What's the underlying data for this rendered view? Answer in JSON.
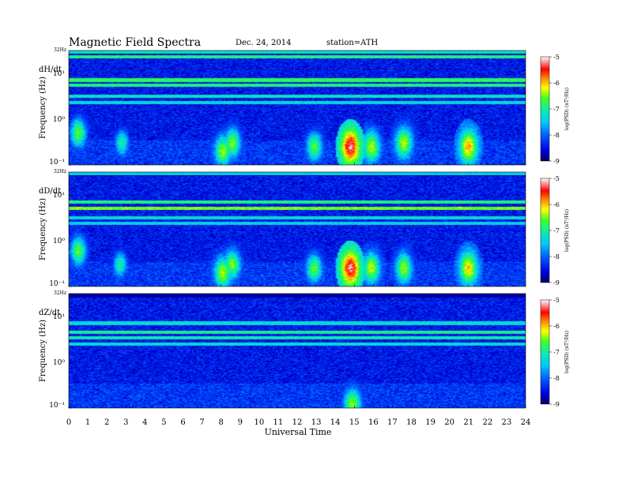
{
  "header": {
    "title": "Magnetic  Field  Spectra",
    "date": "Dec. 24, 2014",
    "station": "station=ATH"
  },
  "chart_data": [
    {
      "type": "heatmap",
      "panel": "dH/dt",
      "ylabel": "Frequency  (Hz)",
      "top_label": "32Hz",
      "yticks": [
        "10¹",
        "10⁰",
        "10⁻¹"
      ],
      "ylim_hz": [
        0.1,
        32
      ],
      "ylog": true,
      "xlim": [
        0,
        24
      ],
      "colorbar": {
        "label": "log(PSD) (nT²/Hz)",
        "ticks": [
          "-5",
          "-6",
          "-7",
          "-8",
          "-9"
        ],
        "range": [
          -9,
          -5
        ]
      },
      "bands": [
        {
          "hz": 30,
          "level": -7.2
        },
        {
          "hz": 23,
          "level": -6.9
        },
        {
          "hz": 7.2,
          "level": -6.8
        },
        {
          "hz": 5.5,
          "level": -6.9
        },
        {
          "hz": 3.2,
          "level": -7.2
        },
        {
          "hz": 2.3,
          "level": -7.3
        }
      ],
      "events": [
        {
          "t": 0.5,
          "hz": 0.5,
          "level": -6.6
        },
        {
          "t": 2.8,
          "hz": 0.3,
          "level": -7.0
        },
        {
          "t": 8.1,
          "hz": 0.2,
          "level": -6.4
        },
        {
          "t": 8.6,
          "hz": 0.3,
          "level": -6.5
        },
        {
          "t": 12.9,
          "hz": 0.25,
          "level": -6.6
        },
        {
          "t": 14.8,
          "hz": 0.25,
          "level": -5.2
        },
        {
          "t": 15.9,
          "hz": 0.25,
          "level": -6.3
        },
        {
          "t": 17.6,
          "hz": 0.3,
          "level": -6.3
        },
        {
          "t": 21.0,
          "hz": 0.25,
          "level": -5.9
        }
      ]
    },
    {
      "type": "heatmap",
      "panel": "dD/dt",
      "ylabel": "Frequency  (Hz)",
      "top_label": "32Hz",
      "yticks": [
        "10¹",
        "10⁰",
        "10⁻¹"
      ],
      "ylim_hz": [
        0.1,
        32
      ],
      "ylog": true,
      "xlim": [
        0,
        24
      ],
      "colorbar": {
        "label": "log(PSD) (nT²/Hz)",
        "ticks": [
          "-5",
          "-6",
          "-7",
          "-8",
          "-9"
        ],
        "range": [
          -9,
          -5
        ]
      },
      "bands": [
        {
          "hz": 30,
          "level": -7.4
        },
        {
          "hz": 7.0,
          "level": -6.9
        },
        {
          "hz": 5.2,
          "level": -6.5
        },
        {
          "hz": 3.2,
          "level": -7.3
        },
        {
          "hz": 2.4,
          "level": -7.4
        }
      ],
      "events": [
        {
          "t": 0.5,
          "hz": 0.6,
          "level": -6.6
        },
        {
          "t": 2.7,
          "hz": 0.3,
          "level": -7.0
        },
        {
          "t": 8.1,
          "hz": 0.2,
          "level": -6.3
        },
        {
          "t": 8.6,
          "hz": 0.3,
          "level": -6.5
        },
        {
          "t": 12.9,
          "hz": 0.25,
          "level": -6.6
        },
        {
          "t": 14.8,
          "hz": 0.25,
          "level": -5.2
        },
        {
          "t": 15.9,
          "hz": 0.25,
          "level": -6.3
        },
        {
          "t": 17.6,
          "hz": 0.25,
          "level": -6.4
        },
        {
          "t": 21.0,
          "hz": 0.25,
          "level": -6.0
        }
      ]
    },
    {
      "type": "heatmap",
      "panel": "dZ/dt",
      "ylabel": "Frequency  (Hz)",
      "top_label": "32Hz",
      "yticks": [
        "10¹",
        "10⁰",
        "10⁻¹"
      ],
      "ylim_hz": [
        0.1,
        32
      ],
      "ylog": true,
      "xlim": [
        0,
        24
      ],
      "colorbar": {
        "label": "log(PSD) (nT²/Hz)",
        "ticks": [
          "-5",
          "-6",
          "-7",
          "-8",
          "-9"
        ],
        "range": [
          -9,
          -5
        ]
      },
      "bands": [
        {
          "hz": 7.2,
          "level": -7.3
        },
        {
          "hz": 4.5,
          "level": -7.0
        },
        {
          "hz": 3.5,
          "level": -7.1
        },
        {
          "hz": 2.5,
          "level": -7.3
        }
      ],
      "events": [
        {
          "t": 14.9,
          "hz": 0.12,
          "level": -6.4
        }
      ]
    }
  ],
  "xaxis": {
    "label": "Universal  Time",
    "ticks": [
      "0",
      "1",
      "2",
      "3",
      "4",
      "5",
      "6",
      "7",
      "8",
      "9",
      "10",
      "11",
      "12",
      "13",
      "14",
      "15",
      "16",
      "17",
      "18",
      "19",
      "20",
      "21",
      "22",
      "23",
      "24"
    ]
  }
}
